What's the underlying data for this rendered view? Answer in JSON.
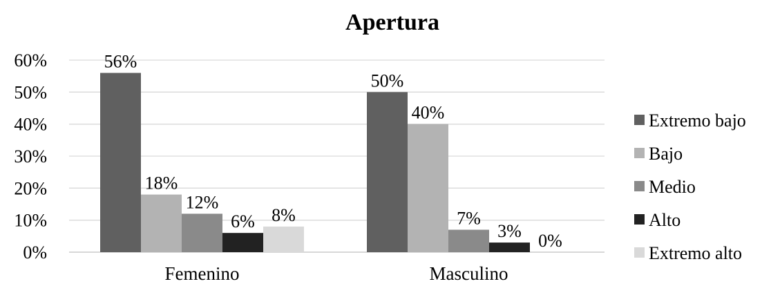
{
  "chart_data": {
    "type": "bar",
    "title": "Apertura",
    "xlabel": "",
    "ylabel": "",
    "categories": [
      "Femenino",
      "Masculino"
    ],
    "ylim": [
      0,
      60
    ],
    "yticks": [
      0,
      10,
      20,
      30,
      40,
      50,
      60
    ],
    "ytick_labels": [
      "0%",
      "10%",
      "20%",
      "30%",
      "40%",
      "50%",
      "60%"
    ],
    "grid": true,
    "legend_position": "right",
    "series": [
      {
        "name": "Extremo bajo",
        "color": "#606060",
        "values": [
          56,
          50
        ],
        "labels": [
          "56%",
          "50%"
        ]
      },
      {
        "name": "Bajo",
        "color": "#b3b3b3",
        "values": [
          18,
          40
        ],
        "labels": [
          "18%",
          "40%"
        ]
      },
      {
        "name": "Medio",
        "color": "#8a8a8a",
        "values": [
          12,
          7
        ],
        "labels": [
          "12%",
          "7%"
        ]
      },
      {
        "name": "Alto",
        "color": "#222222",
        "values": [
          6,
          3
        ],
        "labels": [
          "6%",
          "3%"
        ]
      },
      {
        "name": "Extremo alto",
        "color": "#d9d9d9",
        "values": [
          8,
          0
        ],
        "labels": [
          "8%",
          "0%"
        ]
      }
    ]
  }
}
